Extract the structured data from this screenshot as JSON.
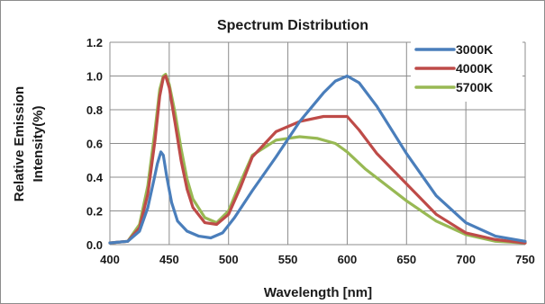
{
  "chart_data": {
    "type": "line",
    "title": "Spectrum Distribution",
    "xlabel": "Wavelength [nm]",
    "ylabel_lines": [
      "Relative Emission",
      "Intensity(%)"
    ],
    "xlim": [
      400,
      750
    ],
    "ylim": [
      0,
      1.2
    ],
    "x_ticks": [
      "400",
      "450",
      "500",
      "550",
      "600",
      "650",
      "700",
      "750"
    ],
    "y_ticks": [
      "0.0",
      "0.2",
      "0.4",
      "0.6",
      "0.8",
      "1.0",
      "1.2"
    ],
    "grid": true,
    "legend_position": "top-right",
    "series": [
      {
        "name": "3000K",
        "color": "#4a7ebb",
        "x": [
          400,
          415,
          425,
          432,
          437,
          440,
          443,
          445,
          448,
          452,
          457,
          465,
          475,
          485,
          495,
          505,
          520,
          540,
          560,
          580,
          590,
          600,
          610,
          625,
          650,
          675,
          700,
          725,
          750
        ],
        "y": [
          0.01,
          0.02,
          0.08,
          0.22,
          0.38,
          0.48,
          0.55,
          0.53,
          0.4,
          0.25,
          0.14,
          0.08,
          0.05,
          0.04,
          0.07,
          0.16,
          0.32,
          0.52,
          0.73,
          0.9,
          0.97,
          1.0,
          0.96,
          0.82,
          0.54,
          0.29,
          0.13,
          0.05,
          0.02
        ]
      },
      {
        "name": "4000K",
        "color": "#be4b48",
        "x": [
          400,
          415,
          425,
          432,
          438,
          442,
          445,
          447,
          450,
          455,
          460,
          465,
          470,
          480,
          490,
          500,
          510,
          520,
          540,
          560,
          580,
          600,
          610,
          625,
          650,
          675,
          700,
          725,
          750
        ],
        "y": [
          0.01,
          0.02,
          0.1,
          0.3,
          0.62,
          0.88,
          0.99,
          1.0,
          0.93,
          0.72,
          0.5,
          0.33,
          0.22,
          0.13,
          0.12,
          0.18,
          0.34,
          0.52,
          0.67,
          0.73,
          0.76,
          0.76,
          0.68,
          0.54,
          0.36,
          0.18,
          0.07,
          0.03,
          0.01
        ]
      },
      {
        "name": "5700K",
        "color": "#98b954",
        "x": [
          400,
          415,
          425,
          432,
          438,
          442,
          445,
          447,
          450,
          455,
          460,
          465,
          470,
          480,
          490,
          500,
          510,
          520,
          540,
          560,
          575,
          590,
          600,
          615,
          650,
          675,
          700,
          725,
          750
        ],
        "y": [
          0.01,
          0.02,
          0.12,
          0.35,
          0.68,
          0.92,
          1.0,
          1.01,
          0.95,
          0.78,
          0.57,
          0.39,
          0.27,
          0.16,
          0.13,
          0.2,
          0.37,
          0.53,
          0.62,
          0.64,
          0.63,
          0.6,
          0.55,
          0.45,
          0.26,
          0.14,
          0.06,
          0.02,
          0.01
        ]
      }
    ]
  }
}
